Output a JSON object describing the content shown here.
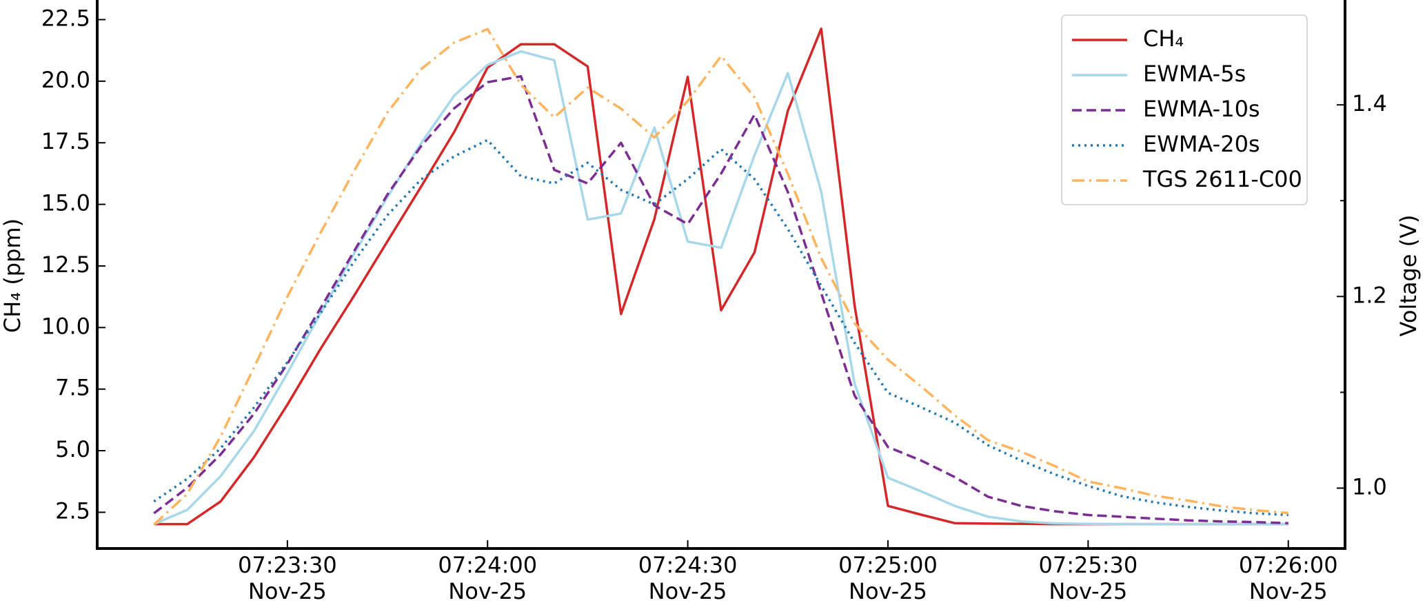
{
  "chart_data": {
    "type": "line",
    "ylabel": "CH₄ (ppm)",
    "y2label": "Voltage (V)",
    "x": [
      "07:23:10",
      "07:23:15",
      "07:23:20",
      "07:23:25",
      "07:23:30",
      "07:23:35",
      "07:23:40",
      "07:23:45",
      "07:23:50",
      "07:23:55",
      "07:24:00",
      "07:24:05",
      "07:24:10",
      "07:24:15",
      "07:24:20",
      "07:24:25",
      "07:24:30",
      "07:24:35",
      "07:24:40",
      "07:24:45",
      "07:24:50",
      "07:24:55",
      "07:25:00",
      "07:25:05",
      "07:25:10",
      "07:25:15",
      "07:25:20",
      "07:25:25",
      "07:25:30",
      "07:25:35",
      "07:25:40",
      "07:25:45",
      "07:25:50",
      "07:25:55",
      "07:26:00"
    ],
    "xlim": [
      "07:23:01.5",
      "07:26:08.5"
    ],
    "xticks": [
      {
        "value": "07:23:30",
        "label": "07:23:30\nNov-25"
      },
      {
        "value": "07:24:00",
        "label": "07:24:00\nNov-25"
      },
      {
        "value": "07:24:30",
        "label": "07:24:30\nNov-25"
      },
      {
        "value": "07:25:00",
        "label": "07:25:00\nNov-25"
      },
      {
        "value": "07:25:30",
        "label": "07:25:30\nNov-25"
      },
      {
        "value": "07:26:00",
        "label": "07:26:00\nNov-25"
      }
    ],
    "ylim": [
      1.03,
      23.24
    ],
    "yticks": [
      2.5,
      {
        "value": 5,
        "label": "5.0"
      },
      7.5,
      {
        "value": 10,
        "label": "10.0"
      },
      12.5,
      {
        "value": 15,
        "label": "15.0"
      },
      17.5,
      {
        "value": 20,
        "label": "20.0"
      },
      22.5
    ],
    "y2lim": [
      0.937,
      1.508
    ],
    "y2ticks": [
      {
        "value": 1,
        "label": "1.0"
      },
      1.2,
      1.4
    ],
    "y2minor_ticks": [
      1.1,
      1.3
    ],
    "legend": "upper right",
    "series": [
      {
        "name": "CH₄",
        "color": "#d62728",
        "style": "solid",
        "values": [
          2.02,
          2.02,
          2.94,
          4.74,
          6.87,
          9.15,
          11.29,
          13.5,
          15.7,
          17.94,
          20.55,
          21.5,
          21.5,
          20.6,
          10.55,
          14.4,
          20.18,
          10.7,
          13.05,
          18.8,
          22.13,
          10.9,
          2.76,
          2.4,
          2.06,
          2.04,
          2.03,
          2.02,
          2.02,
          2.02,
          2.02,
          2.02,
          2.02,
          2.02,
          2.02
        ]
      },
      {
        "name": "EWMA-5s",
        "color": "#a6d8ea",
        "style": "solid",
        "values": [
          2.02,
          2.6,
          3.97,
          5.8,
          8.15,
          10.6,
          13.0,
          15.3,
          17.46,
          19.41,
          20.66,
          21.21,
          20.85,
          14.38,
          14.63,
          18.12,
          13.49,
          13.24,
          16.99,
          20.33,
          15.51,
          7.72,
          3.9,
          3.35,
          2.76,
          2.32,
          2.13,
          2.05,
          2.03,
          2.02,
          2.02,
          2.02,
          2.02,
          2.02,
          2.02
        ]
      },
      {
        "name": "EWMA-10s",
        "color": "#7b2d94",
        "style": "dashed",
        "values": [
          2.46,
          3.5,
          4.85,
          6.5,
          8.53,
          10.8,
          13.1,
          15.4,
          17.35,
          18.9,
          19.96,
          20.2,
          16.4,
          15.85,
          17.5,
          14.96,
          14.2,
          16.25,
          18.64,
          15.5,
          11.4,
          7.24,
          5.15,
          4.6,
          3.93,
          3.13,
          2.76,
          2.54,
          2.39,
          2.32,
          2.24,
          2.17,
          2.13,
          2.1,
          2.06
        ]
      },
      {
        "name": "EWMA-20s",
        "color": "#1f77b4",
        "style": "dotted",
        "values": [
          2.94,
          3.86,
          5.1,
          6.76,
          8.6,
          10.6,
          12.68,
          14.56,
          16.0,
          16.95,
          17.61,
          16.14,
          15.85,
          16.69,
          15.59,
          15.0,
          16.03,
          17.24,
          16.03,
          14.0,
          11.69,
          9.38,
          7.35,
          6.76,
          6.14,
          5.22,
          4.6,
          4.04,
          3.57,
          3.16,
          2.9,
          2.72,
          2.57,
          2.46,
          2.39
        ]
      },
      {
        "name": "TGS 2611-C00",
        "color": "#ffb35c",
        "style": "dashdot",
        "axis": "y2",
        "values": [
          0.962,
          0.994,
          1.054,
          1.126,
          1.2,
          1.267,
          1.331,
          1.392,
          1.437,
          1.465,
          1.479,
          1.421,
          1.387,
          1.418,
          1.396,
          1.366,
          1.404,
          1.451,
          1.408,
          1.328,
          1.24,
          1.172,
          1.134,
          1.106,
          1.076,
          1.05,
          1.038,
          1.023,
          1.007,
          1.0,
          0.992,
          0.987,
          0.981,
          0.977,
          0.974
        ]
      }
    ]
  }
}
